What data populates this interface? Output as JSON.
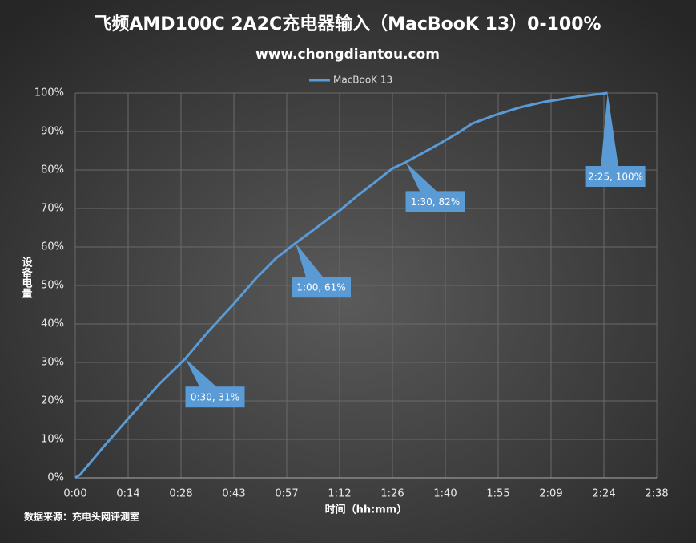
{
  "chart_data": {
    "type": "line",
    "title": "飞频AMD100C 2A2C充电器输入（MacBooK 13）0-100%",
    "subtitle": "www.chongdiantou.com",
    "x_label": "时间（hh:mm）",
    "y_label": "设备电量",
    "source": "数据来源：充电头网评测室",
    "legend": "top",
    "grid": true,
    "xlim": [
      0,
      158.4
    ],
    "ylim": [
      0,
      100
    ],
    "xticks": [
      {
        "value": 0,
        "label": "0:00"
      },
      {
        "value": 14.4,
        "label": "0:14"
      },
      {
        "value": 28.8,
        "label": "0:28"
      },
      {
        "value": 43.2,
        "label": "0:43"
      },
      {
        "value": 57.6,
        "label": "0:57"
      },
      {
        "value": 72,
        "label": "1:12"
      },
      {
        "value": 86.4,
        "label": "1:26"
      },
      {
        "value": 100.8,
        "label": "1:40"
      },
      {
        "value": 115.2,
        "label": "1:55"
      },
      {
        "value": 129.6,
        "label": "2:09"
      },
      {
        "value": 144,
        "label": "2:24"
      },
      {
        "value": 158.4,
        "label": "2:38"
      }
    ],
    "yticks": [
      {
        "value": 0,
        "label": "0%"
      },
      {
        "value": 10,
        "label": "10%"
      },
      {
        "value": 20,
        "label": "20%"
      },
      {
        "value": 30,
        "label": "30%"
      },
      {
        "value": 40,
        "label": "40%"
      },
      {
        "value": 50,
        "label": "50%"
      },
      {
        "value": 60,
        "label": "60%"
      },
      {
        "value": 70,
        "label": "70%"
      },
      {
        "value": 80,
        "label": "80%"
      },
      {
        "value": 90,
        "label": "90%"
      },
      {
        "value": 100,
        "label": "100%"
      }
    ],
    "x": [
      0,
      1.3,
      3.5,
      7.9,
      14.4,
      23.1,
      30,
      36.2,
      42.8,
      49.3,
      54.7,
      60,
      66.8,
      72.2,
      76.6,
      82,
      86.4,
      90,
      97.3,
      103.9,
      108.2,
      114.8,
      121.3,
      127.8,
      136.5,
      145
    ],
    "series": [
      {
        "name": "MacBooK 13",
        "color": "#5b9bd5",
        "values": [
          0,
          0.8,
          3.3,
          8.3,
          15.4,
          24.6,
          31,
          38,
          44.8,
          51.9,
          57.1,
          61,
          65.8,
          69.6,
          73.1,
          77.1,
          80.4,
          82,
          85.8,
          89.4,
          92.1,
          94.4,
          96.3,
          97.7,
          99,
          100
        ]
      }
    ],
    "annotations": [
      {
        "text": "0:30, 31%",
        "x": 30,
        "y": 31
      },
      {
        "text": "1:00, 61%",
        "x": 60,
        "y": 61
      },
      {
        "text": "1:30, 82%",
        "x": 90,
        "y": 82
      },
      {
        "text": "2:25, 100%",
        "x": 145,
        "y": 100
      }
    ]
  }
}
